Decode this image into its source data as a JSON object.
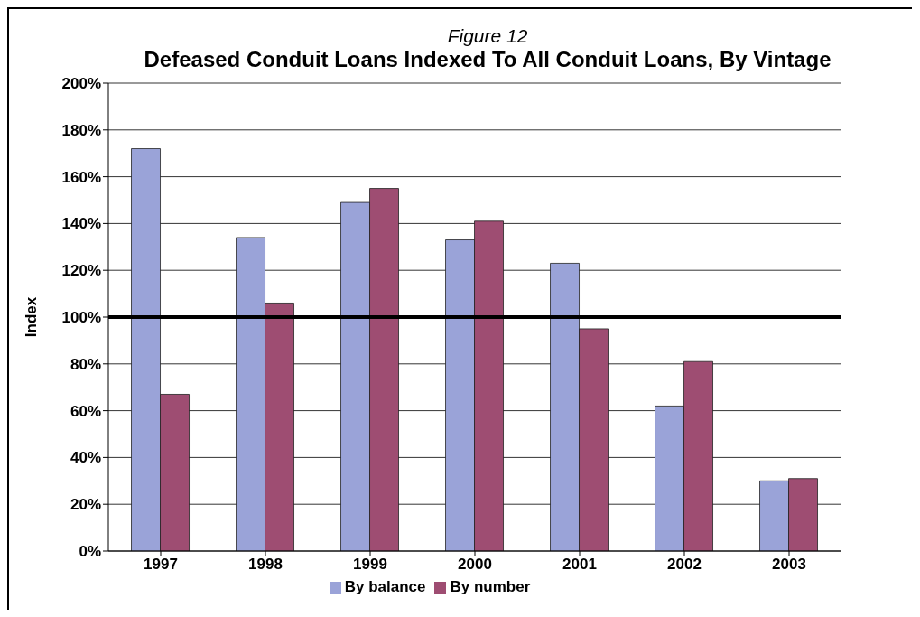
{
  "chart_data": {
    "type": "bar",
    "subtitle": "Figure 12",
    "title": "Defeased Conduit Loans Indexed To All Conduit Loans, By Vintage",
    "ylabel": "Index",
    "categories": [
      "1997",
      "1998",
      "1999",
      "2000",
      "2001",
      "2002",
      "2003"
    ],
    "series": [
      {
        "name": "By balance",
        "color": "#9aa3d8",
        "values": [
          172,
          134,
          149,
          133,
          123,
          62,
          30
        ]
      },
      {
        "name": "By number",
        "color": "#9e4d72",
        "values": [
          67,
          106,
          155,
          141,
          95,
          81,
          31
        ]
      }
    ],
    "ylim": [
      0,
      200
    ],
    "yticks": [
      {
        "value": 0,
        "label": "0%"
      },
      {
        "value": 20,
        "label": "20%"
      },
      {
        "value": 40,
        "label": "40%"
      },
      {
        "value": 60,
        "label": "60%"
      },
      {
        "value": 80,
        "label": "80%"
      },
      {
        "value": 100,
        "label": "100%"
      },
      {
        "value": 120,
        "label": "120%"
      },
      {
        "value": 140,
        "label": "140%"
      },
      {
        "value": 160,
        "label": "160%"
      },
      {
        "value": 180,
        "label": "180%"
      },
      {
        "value": 200,
        "label": "200%"
      }
    ],
    "ref_lines": [
      {
        "axis": "y",
        "value": 100,
        "color": "#000000"
      }
    ],
    "grid": "y",
    "legend": "bottom"
  }
}
